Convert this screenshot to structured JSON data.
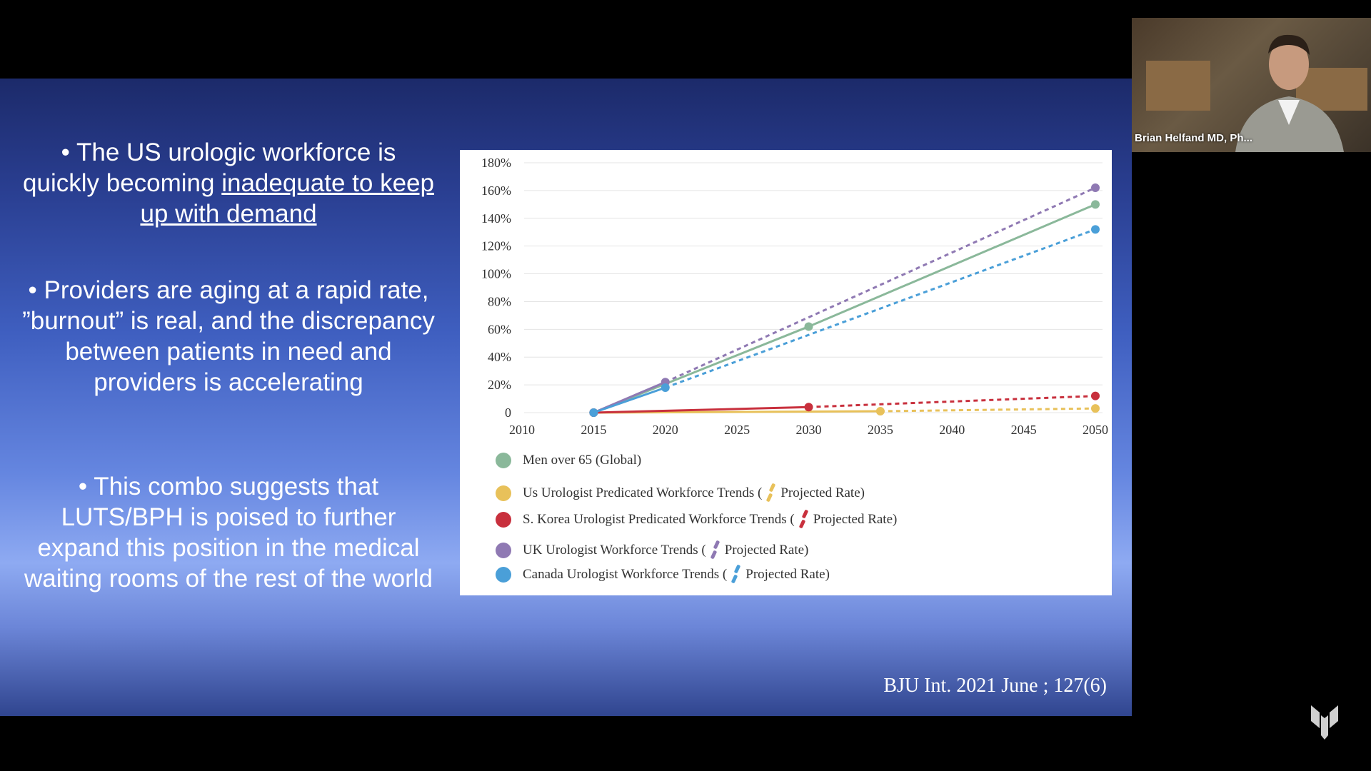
{
  "slide": {
    "bullets": [
      {
        "prefix": "• The US urologic workforce is quickly becoming ",
        "underlined": "inadequate to keep up with demand"
      },
      {
        "text": "• Providers are aging at a rapid rate, ”burnout” is real, and the discrepancy between patients in need and providers is accelerating"
      },
      {
        "text": "• This combo suggests that LUTS/BPH is poised to further expand this position in the medical waiting rooms of the rest of the world"
      }
    ],
    "citation": "BJU Int. 2021 June ; 127(6)"
  },
  "video": {
    "speaker_name": "Brian Helfand MD, Ph..."
  },
  "chart_data": {
    "type": "line",
    "x_ticks": [
      "2010",
      "2015",
      "2020",
      "2025",
      "2030",
      "2035",
      "2040",
      "2045",
      "2050"
    ],
    "y_ticks": [
      "180%",
      "160%",
      "140%",
      "120%",
      "100%",
      "80%",
      "60%",
      "40%",
      "20%",
      "0"
    ],
    "xlim": [
      2010,
      2050
    ],
    "ylim": [
      0,
      180
    ],
    "grid": true,
    "series": [
      {
        "name": "Men over 65 (Global)",
        "color": "#8ab89a",
        "points": [
          [
            2015,
            0
          ],
          [
            2030,
            62
          ],
          [
            2050,
            150
          ]
        ],
        "solid_until": 2050
      },
      {
        "name": "Us Urologist Predicated Workforce Trends",
        "color": "#e8c15a",
        "points": [
          [
            2015,
            0
          ],
          [
            2035,
            1
          ],
          [
            2050,
            3
          ]
        ],
        "solid_until": 2035
      },
      {
        "name": "S. Korea Urologist Predicated Workforce Trends",
        "color": "#c8303d",
        "points": [
          [
            2015,
            0
          ],
          [
            2030,
            4
          ],
          [
            2050,
            12
          ]
        ],
        "solid_until": 2030
      },
      {
        "name": "UK Urologist Workforce Trends",
        "color": "#8f79b3",
        "points": [
          [
            2015,
            0
          ],
          [
            2020,
            22
          ],
          [
            2050,
            162
          ]
        ],
        "solid_until": 2020
      },
      {
        "name": "Canada Urologist Workforce Trends",
        "color": "#4a9fd8",
        "points": [
          [
            2015,
            0
          ],
          [
            2020,
            18
          ],
          [
            2050,
            132
          ]
        ],
        "solid_until": 2020
      }
    ],
    "legend": [
      {
        "label": "Men over 65 (Global)",
        "color": "#8ab89a",
        "has_projection": false
      },
      {
        "label": "Us Urologist Predicated Workforce Trends (",
        "suffix": "Projected Rate)",
        "color": "#e8c15a",
        "has_projection": true
      },
      {
        "label": "S. Korea Urologist Predicated Workforce Trends (",
        "suffix": "Projected Rate)",
        "color": "#c8303d",
        "has_projection": true
      },
      {
        "label": "UK Urologist Workforce Trends (",
        "suffix": "Projected Rate)",
        "color": "#8f79b3",
        "has_projection": true
      },
      {
        "label": "Canada Urologist Workforce Trends (",
        "suffix": "Projected Rate)",
        "color": "#4a9fd8",
        "has_projection": true
      }
    ]
  }
}
